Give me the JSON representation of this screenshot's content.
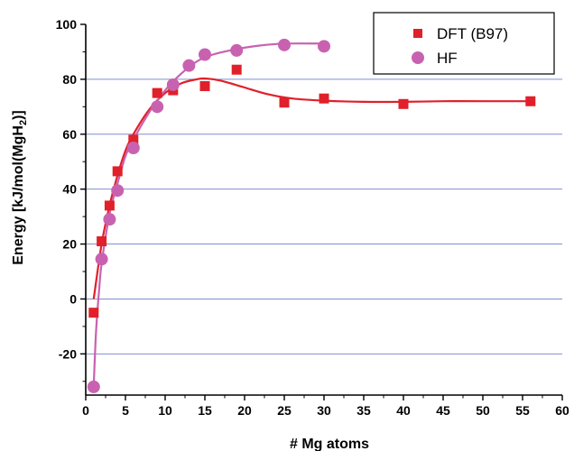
{
  "chart_data": {
    "type": "scatter",
    "title": "",
    "xlabel": "# Mg atoms",
    "ylabel_main": "Energy [kJ/mol(MgH",
    "ylabel_sub": "2",
    "ylabel_end": ")]",
    "xlim": [
      0,
      60
    ],
    "ylim": [
      -35,
      100
    ],
    "xticks": [
      0,
      5,
      10,
      15,
      20,
      25,
      30,
      35,
      40,
      45,
      50,
      55,
      60
    ],
    "yticks": [
      -20,
      0,
      20,
      40,
      60,
      80,
      100
    ],
    "gridlines_y": [
      -20,
      0,
      20,
      40,
      60,
      80
    ],
    "grid": "horizontal",
    "legend_position": "top-right",
    "series": [
      {
        "name": "DFT (B97)",
        "marker": "square",
        "color": "#e0202a",
        "points": [
          {
            "x": 1,
            "y": -5
          },
          {
            "x": 2,
            "y": 21
          },
          {
            "x": 3,
            "y": 34
          },
          {
            "x": 4,
            "y": 46.5
          },
          {
            "x": 6,
            "y": 58
          },
          {
            "x": 9,
            "y": 75
          },
          {
            "x": 11,
            "y": 76
          },
          {
            "x": 15,
            "y": 77.5
          },
          {
            "x": 19,
            "y": 83.5
          },
          {
            "x": 25,
            "y": 71.5
          },
          {
            "x": 30,
            "y": 73
          },
          {
            "x": 40,
            "y": 71
          },
          {
            "x": 56,
            "y": 72
          }
        ],
        "fit": [
          {
            "x": 1,
            "y": 0
          },
          {
            "x": 2,
            "y": 20
          },
          {
            "x": 3,
            "y": 34
          },
          {
            "x": 4,
            "y": 45
          },
          {
            "x": 5,
            "y": 54
          },
          {
            "x": 6,
            "y": 60
          },
          {
            "x": 8,
            "y": 69
          },
          {
            "x": 10,
            "y": 75
          },
          {
            "x": 12,
            "y": 78.5
          },
          {
            "x": 14,
            "y": 80
          },
          {
            "x": 15,
            "y": 80.3
          },
          {
            "x": 17,
            "y": 79.5
          },
          {
            "x": 20,
            "y": 77
          },
          {
            "x": 23,
            "y": 74.5
          },
          {
            "x": 26,
            "y": 73
          },
          {
            "x": 30,
            "y": 72.2
          },
          {
            "x": 35,
            "y": 71.8
          },
          {
            "x": 40,
            "y": 71.8
          },
          {
            "x": 45,
            "y": 72
          },
          {
            "x": 50,
            "y": 72
          },
          {
            "x": 56,
            "y": 72
          }
        ]
      },
      {
        "name": "HF",
        "marker": "circle",
        "color": "#c862b0",
        "points": [
          {
            "x": 1,
            "y": -32
          },
          {
            "x": 2,
            "y": 14.5
          },
          {
            "x": 3,
            "y": 29
          },
          {
            "x": 4,
            "y": 39.5
          },
          {
            "x": 6,
            "y": 55
          },
          {
            "x": 9,
            "y": 70
          },
          {
            "x": 11,
            "y": 78
          },
          {
            "x": 13,
            "y": 85
          },
          {
            "x": 15,
            "y": 89
          },
          {
            "x": 19,
            "y": 90.5
          },
          {
            "x": 25,
            "y": 92.5
          },
          {
            "x": 30,
            "y": 92
          }
        ],
        "fit": [
          {
            "x": 1,
            "y": -32
          },
          {
            "x": 1.3,
            "y": -12
          },
          {
            "x": 1.7,
            "y": 4
          },
          {
            "x": 2,
            "y": 13
          },
          {
            "x": 3,
            "y": 31
          },
          {
            "x": 4,
            "y": 42
          },
          {
            "x": 5,
            "y": 52
          },
          {
            "x": 6,
            "y": 58
          },
          {
            "x": 8,
            "y": 68
          },
          {
            "x": 10,
            "y": 76
          },
          {
            "x": 12,
            "y": 82
          },
          {
            "x": 14,
            "y": 86.5
          },
          {
            "x": 16,
            "y": 89
          },
          {
            "x": 19,
            "y": 91
          },
          {
            "x": 22,
            "y": 92.3
          },
          {
            "x": 25,
            "y": 93
          },
          {
            "x": 30,
            "y": 93
          }
        ]
      }
    ]
  }
}
